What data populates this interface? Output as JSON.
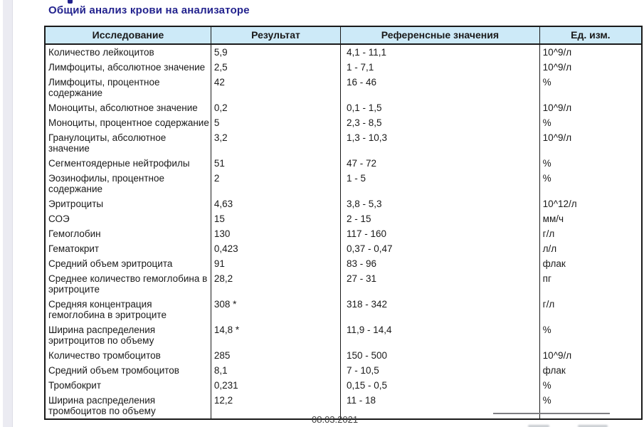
{
  "page": {
    "title": "Общий анализ крови на анализаторе",
    "date": "08.03.2021"
  },
  "colors": {
    "title_text": "#23238e",
    "header_background": "#cdeaf8",
    "table_border": "#1a1a1a",
    "left_strip": "#ebebf2"
  },
  "table": {
    "columns": [
      "Исследование",
      "Результат",
      "Референсные значения",
      "Ед. изм."
    ],
    "rows": [
      {
        "name": "Количество лейкоцитов",
        "result": "5,9",
        "reference": "4,1 - 11,1",
        "unit": "10^9/л"
      },
      {
        "name": "Лимфоциты, абсолютное значение",
        "result": "2,5",
        "reference": "1 - 7,1",
        "unit": "10^9/л"
      },
      {
        "name": "Лимфоциты, процентное содержание",
        "result": "42",
        "reference": "16 - 46",
        "unit": "%"
      },
      {
        "name": "Моноциты, абсолютное значение",
        "result": "0,2",
        "reference": "0,1 - 1,5",
        "unit": "10^9/л"
      },
      {
        "name": "Моноциты, процентное содержание",
        "result": "5",
        "reference": "2,3 - 8,5",
        "unit": "%"
      },
      {
        "name": "Гранулоциты, абсолютное значение",
        "result": "3,2",
        "reference": "1,3 - 10,3",
        "unit": "10^9/л"
      },
      {
        "name": "Сегментоядерные нейтрофилы",
        "result": "51",
        "reference": "47 - 72",
        "unit": "%"
      },
      {
        "name": "Эозинофилы, процентное содержание",
        "result": "2",
        "reference": "1 - 5",
        "unit": "%"
      },
      {
        "name": "Эритроциты",
        "result": "4,63",
        "reference": "3,8 - 5,3",
        "unit": "10^12/л"
      },
      {
        "name": "СОЭ",
        "result": "15",
        "reference": "2 - 15",
        "unit": "мм/ч"
      },
      {
        "name": "Гемоглобин",
        "result": "130",
        "reference": "117 - 160",
        "unit": "г/л"
      },
      {
        "name": "Гематокрит",
        "result": "0,423",
        "reference": "0,37 - 0,47",
        "unit": "л/л"
      },
      {
        "name": "Средний объем эритроцита",
        "result": "91",
        "reference": "83 - 96",
        "unit": "флак"
      },
      {
        "name": "Среднее количество гемоглобина в эритроците",
        "result": "28,2",
        "reference": "27 - 31",
        "unit": "пг"
      },
      {
        "name": "Средняя концентрация гемоглобина в эритроците",
        "result": "308 *",
        "reference": "318 - 342",
        "unit": "г/л"
      },
      {
        "name": "Ширина распределения эритроцитов по объему",
        "result": "14,8 *",
        "reference": "11,9 - 14,4",
        "unit": "%"
      },
      {
        "name": "Количество тромбоцитов",
        "result": "285",
        "reference": "150 - 500",
        "unit": "10^9/л"
      },
      {
        "name": "Средний объем тромбоцитов",
        "result": "8,1",
        "reference": "7 - 10,5",
        "unit": "флак"
      },
      {
        "name": "Тромбокрит",
        "result": "0,231",
        "reference": "0,15 - 0,5",
        "unit": "%"
      },
      {
        "name": "Ширина распределения тромбоцитов по объему",
        "result": "12,2",
        "reference": "11 - 18",
        "unit": "%"
      }
    ]
  }
}
